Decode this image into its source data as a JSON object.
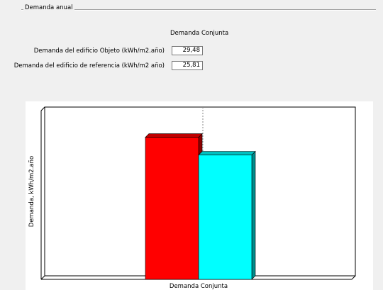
{
  "section": {
    "title": "Demanda anual"
  },
  "table": {
    "column_header": "Demanda Conjunta",
    "rows": [
      {
        "label": "Demanda del edificio Objeto (kWh/m2.año)",
        "value": "29,48"
      },
      {
        "label": "Demanda del edificio de referencia (kWh/m2 año)",
        "value": "25,81"
      }
    ]
  },
  "chart_data": {
    "type": "bar",
    "categories": [
      "Demanda Conjunta"
    ],
    "series": [
      {
        "values": [
          29.48
        ],
        "color": "#ff0000"
      },
      {
        "values": [
          25.81
        ],
        "color": "#00ffff"
      }
    ],
    "title": "",
    "xlabel": "",
    "ylabel": "Demanda, kWh/m2.año",
    "ylim": [
      0,
      35
    ],
    "legend": "none",
    "grid": false
  }
}
